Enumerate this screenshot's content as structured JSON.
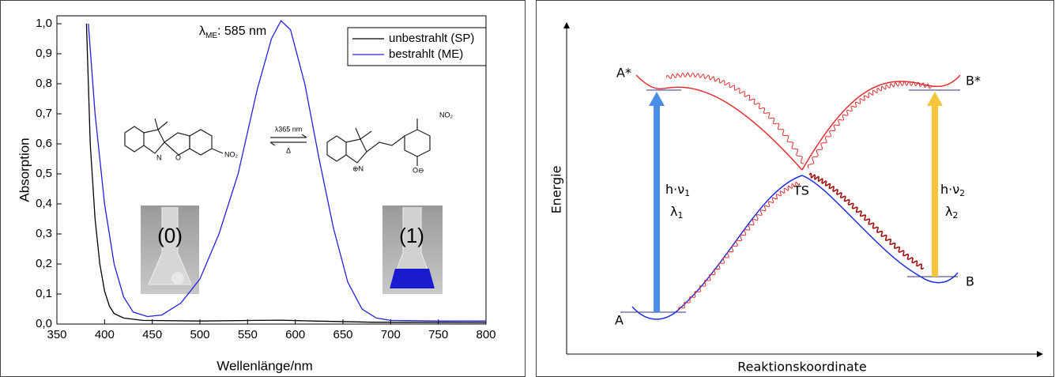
{
  "chart_data": {
    "type": "line",
    "xlabel": "Wellenlänge/nm",
    "ylabel": "Absorption",
    "annotation": {
      "symbol": "λ",
      "subscript": "ME",
      "text": ": 585 nm"
    },
    "insets": [
      "(0)",
      "(1)"
    ],
    "molecule_labels": [
      "N",
      "O",
      "NO₂",
      "λ365 nm",
      "Δ",
      "⊕N",
      "O⊖"
    ],
    "xlim": [
      350,
      800
    ],
    "xticks": [
      350,
      400,
      450,
      500,
      550,
      600,
      650,
      700,
      750,
      800
    ],
    "ylim": [
      0,
      1.0
    ],
    "yticks": [
      {
        "value": 0,
        "label": "0,0"
      },
      {
        "value": 0.1,
        "label": "0,1"
      },
      {
        "value": 0.2,
        "label": "0,2"
      },
      {
        "value": 0.3,
        "label": "0,3"
      },
      {
        "value": 0.4,
        "label": "0,4"
      },
      {
        "value": 0.5,
        "label": "0,5"
      },
      {
        "value": 0.6,
        "label": "0,6"
      },
      {
        "value": 0.7,
        "label": "0,7"
      },
      {
        "value": 0.8,
        "label": "0,8"
      },
      {
        "value": 0.9,
        "label": "0,9"
      },
      {
        "value": 1.0,
        "label": "1,0"
      }
    ],
    "legend": "top-right",
    "series": [
      {
        "name": "unbestrahlt (SP)",
        "color": "#000000",
        "x": [
          381,
          385,
          390,
          395,
          400,
          405,
          410,
          420,
          440,
          500,
          560,
          585,
          620,
          680,
          800
        ],
        "values": [
          1.0,
          0.6,
          0.35,
          0.2,
          0.11,
          0.06,
          0.035,
          0.02,
          0.012,
          0.01,
          0.012,
          0.013,
          0.01,
          0.006,
          0.005
        ]
      },
      {
        "name": "bestrahlt (ME)",
        "color": "#2020e0",
        "x": [
          383,
          390,
          400,
          410,
          420,
          430,
          445,
          460,
          480,
          500,
          520,
          540,
          560,
          575,
          585,
          595,
          610,
          625,
          640,
          655,
          670,
          685,
          700,
          750,
          800
        ],
        "values": [
          1.0,
          0.7,
          0.4,
          0.2,
          0.09,
          0.04,
          0.025,
          0.03,
          0.07,
          0.15,
          0.3,
          0.5,
          0.78,
          0.95,
          1.01,
          0.98,
          0.8,
          0.55,
          0.32,
          0.14,
          0.05,
          0.02,
          0.012,
          0.01,
          0.01
        ]
      }
    ]
  },
  "diagram": {
    "labels": {
      "a_star": "A*",
      "b_star": "B*",
      "a": "A",
      "b": "B",
      "ts": "TS"
    },
    "photon_1": {
      "energy": "h·ν",
      "wavelength": "λ",
      "index": "1"
    },
    "photon_2": {
      "energy": "h·ν",
      "wavelength": "λ",
      "index": "2"
    },
    "y_axis": "Energie",
    "x_axis": "Reaktionskoordinate"
  }
}
